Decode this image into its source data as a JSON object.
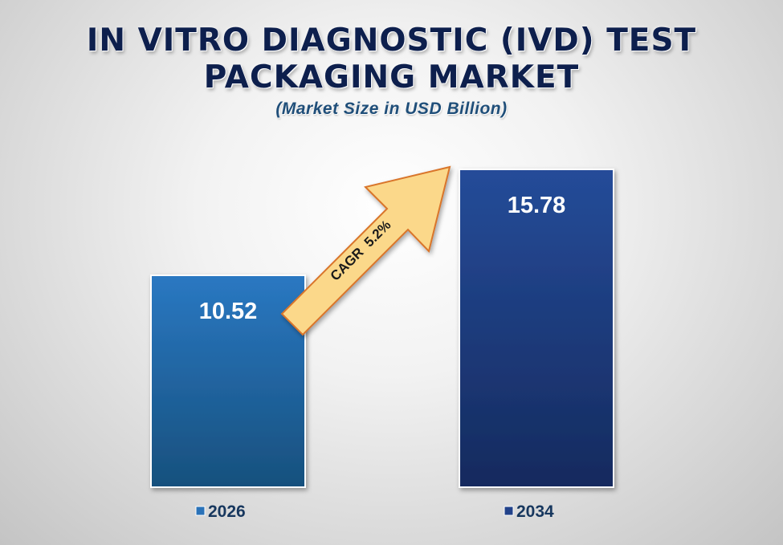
{
  "chart_data": {
    "type": "bar",
    "title": "IN VITRO DIAGNOSTIC (IVD) TEST PACKAGING MARKET",
    "subtitle": "(Market Size in USD Billion)",
    "categories": [
      "2026",
      "2034"
    ],
    "values": [
      10.52,
      15.78
    ],
    "value_labels": [
      "10.52",
      "15.78"
    ],
    "series_colors": [
      "#2a72b8",
      "#22428a"
    ],
    "ylim": [
      0,
      15.78
    ],
    "legend_placement": "bottom",
    "grid": false,
    "annotation": {
      "text": "CAGR  5.2%",
      "color": "#fbd88a"
    }
  }
}
